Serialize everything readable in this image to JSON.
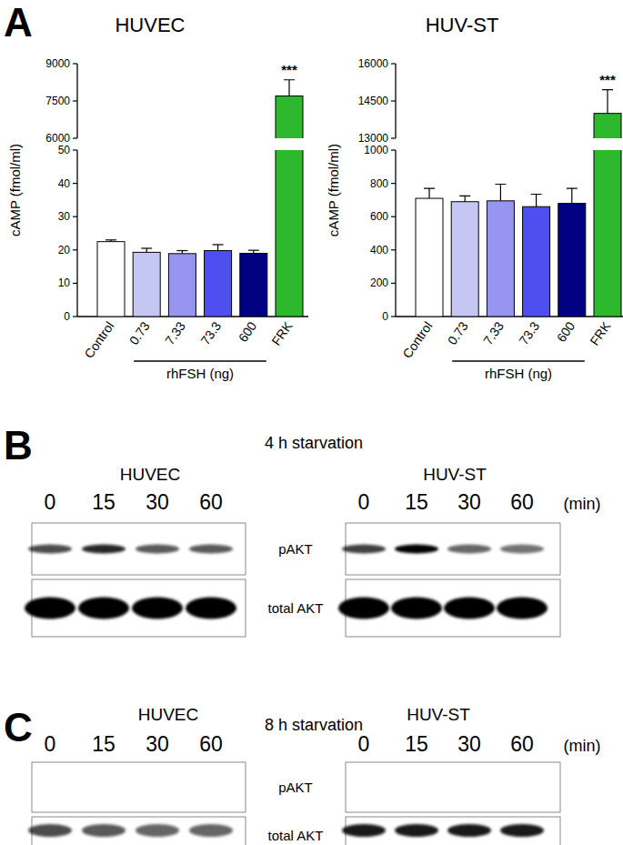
{
  "panel_labels": [
    "A",
    "B",
    "C"
  ],
  "chart_data": [
    {
      "type": "bar",
      "title": "HUVEC",
      "y_label": "cAMP (fmol/ml)",
      "categories": [
        "Control",
        "0.73",
        "7.33",
        "73.3",
        "600",
        "FRK"
      ],
      "values": [
        22.5,
        19.3,
        18.9,
        19.8,
        19.0,
        7700
      ],
      "errors": [
        0.5,
        1.2,
        0.9,
        1.8,
        0.9,
        650
      ],
      "colors": [
        "#ffffff",
        "#c6c6f2",
        "#9696f0",
        "#4f4ff0",
        "#000080",
        "#2db82d"
      ],
      "ylim": [
        0,
        9000
      ],
      "yticks": [
        0,
        10,
        20,
        30,
        40,
        50,
        6000,
        7500,
        9000
      ],
      "axis_break": [
        50,
        6000
      ],
      "group_label": "rhFSH (ng)",
      "group_span": [
        1,
        4
      ],
      "annotations": [
        {
          "index": 5,
          "text": "***"
        }
      ]
    },
    {
      "type": "bar",
      "title": "HUV-ST",
      "y_label": "cAMP (fmol/ml)",
      "categories": [
        "Control",
        "0.73",
        "7.33",
        "73.3",
        "600",
        "FRK"
      ],
      "values": [
        710,
        690,
        695,
        660,
        680,
        14000
      ],
      "errors": [
        60,
        35,
        100,
        75,
        90,
        950
      ],
      "colors": [
        "#ffffff",
        "#c6c6f2",
        "#9696f0",
        "#4f4ff0",
        "#000080",
        "#2db82d"
      ],
      "ylim": [
        0,
        16000
      ],
      "yticks": [
        0,
        200,
        400,
        600,
        800,
        1000,
        13000,
        14500,
        16000
      ],
      "axis_break": [
        1000,
        13000
      ],
      "group_label": "rhFSH (ng)",
      "group_span": [
        1,
        4
      ],
      "annotations": [
        {
          "index": 5,
          "text": "***"
        }
      ]
    }
  ],
  "blots": [
    {
      "title": "4 h starvation",
      "unit": "(min)",
      "lanes": [
        0,
        15,
        30,
        60
      ],
      "row_labels": [
        "pAKT",
        "total AKT"
      ],
      "blots": [
        {
          "title": "HUVEC",
          "intensity": [
            [
              0.7,
              0.85,
              0.65,
              0.65
            ],
            [
              1,
              1,
              1,
              1
            ]
          ]
        },
        {
          "title": "HUV-ST",
          "intensity": [
            [
              0.75,
              1,
              0.6,
              0.55
            ],
            [
              1,
              1,
              1,
              1
            ]
          ]
        }
      ]
    },
    {
      "title": "8 h starvation",
      "unit": "(min)",
      "lanes": [
        0,
        15,
        30,
        60
      ],
      "row_labels": [
        "pAKT",
        "total AKT"
      ],
      "blots": [
        {
          "title": "HUVEC",
          "intensity": [
            [
              0,
              0,
              0,
              0
            ],
            [
              0.7,
              0.65,
              0.6,
              0.6
            ]
          ]
        },
        {
          "title": "HUV-ST",
          "intensity": [
            [
              0,
              0,
              0,
              0
            ],
            [
              0.9,
              0.9,
              0.9,
              0.9
            ]
          ]
        }
      ]
    }
  ]
}
